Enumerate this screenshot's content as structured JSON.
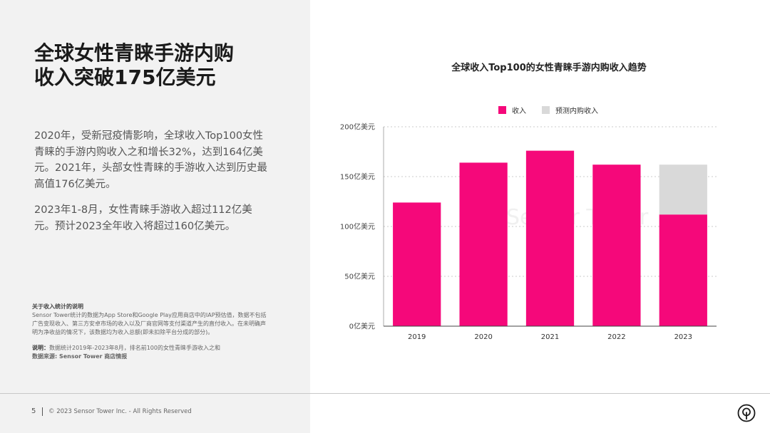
{
  "headline": {
    "line1": "全球女性青睐手游内购",
    "line2": "收入突破175亿美元"
  },
  "body": {
    "para1": "2020年，受新冠疫情影响，全球收入Top100女性青睐的手游内购收入之和增长32%，达到164亿美元。2021年，头部女性青睐的手游收入达到历史最高值176亿美元。",
    "para2": "2023年1-8月，女性青睐手游收入超过112亿美元。预计2023全年收入将超过160亿美元。"
  },
  "notes": {
    "title": "关于收入统计的说明",
    "text": "Sensor Tower统计的数据为App Store和Google Play应用商店中的IAP预估值，数据不包括广告变现收入、第三方安卓市场的收入以及厂商官网等支付渠道产生的直付收入。在未明确声明为净收益的情况下，该数据均为收入总额(即未扣除平台分成的部分)。",
    "explain_label": "说明：",
    "explain_text": "数据统计2019年-2023年8月，排名前100的女性青睐手游收入之和",
    "source": "数据来源: Sensor Tower 商店情报"
  },
  "footer": {
    "page": "5",
    "copyright": "© 2023 Sensor Tower Inc. - All Rights Reserved"
  },
  "watermark": "Sensor Tower",
  "colors": {
    "revenue": "#f5087a",
    "forecast": "#d9d9d9",
    "left_bg": "#f2f2f2"
  },
  "chart_data": {
    "type": "bar",
    "title": "全球收入Top100的女性青睐手游内购收入趋势",
    "categories": [
      "2019",
      "2020",
      "2021",
      "2022",
      "2023"
    ],
    "series": [
      {
        "name": "收入",
        "values": [
          124,
          164,
          176,
          162,
          112
        ]
      },
      {
        "name": "预测内购收入",
        "values": [
          0,
          0,
          0,
          0,
          50
        ]
      }
    ],
    "stacked": true,
    "ylim": [
      0,
      200
    ],
    "yticks": [
      0,
      50,
      100,
      150,
      200
    ],
    "ytick_labels": [
      "0亿美元",
      "50亿美元",
      "100亿美元",
      "150亿美元",
      "200亿美元"
    ],
    "grid": true,
    "legend": "top"
  }
}
